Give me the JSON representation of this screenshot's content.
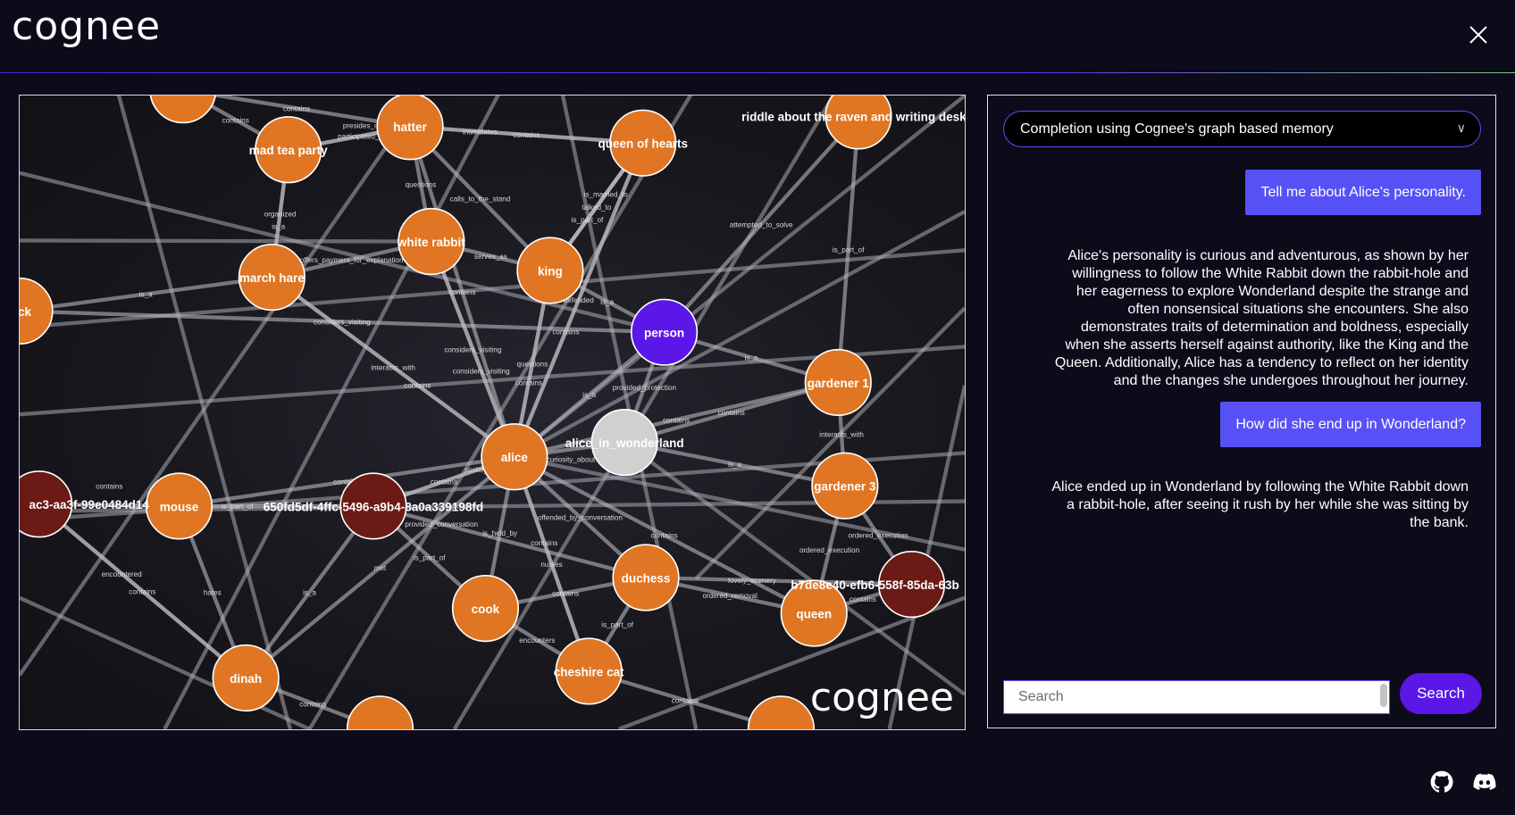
{
  "header": {
    "logo_text": "cognee",
    "close_icon": "close-icon"
  },
  "graph": {
    "watermark": "cognee",
    "colors": {
      "entity": "#e07623",
      "type": "#5b17e8",
      "document": "#d0d0d0",
      "chunk": "#6b1a16",
      "edge": "#b8b8be"
    },
    "nodes": [
      {
        "id": "top",
        "label": "",
        "kind": "entity"
      },
      {
        "id": "hatter",
        "label": "hatter",
        "kind": "entity"
      },
      {
        "id": "madtea",
        "label": "mad tea party",
        "kind": "entity"
      },
      {
        "id": "qoh",
        "label": "queen of hearts",
        "kind": "entity"
      },
      {
        "id": "riddle",
        "label": "riddle about the raven and writing desk",
        "kind": "entity"
      },
      {
        "id": "wrabbit",
        "label": "white rabbit",
        "kind": "entity"
      },
      {
        "id": "king",
        "label": "king",
        "kind": "entity"
      },
      {
        "id": "march",
        "label": "march hare",
        "kind": "entity"
      },
      {
        "id": "leftck",
        "label": "ck",
        "kind": "entity"
      },
      {
        "id": "person",
        "label": "person",
        "kind": "type"
      },
      {
        "id": "gard1",
        "label": "gardener 1",
        "kind": "entity"
      },
      {
        "id": "aiw",
        "label": "alice_in_wonderland",
        "kind": "document"
      },
      {
        "id": "alice",
        "label": "alice",
        "kind": "entity"
      },
      {
        "id": "gard3",
        "label": "gardener 3",
        "kind": "entity"
      },
      {
        "id": "chunk1",
        "label": "ac3-aa3f-99e0484d14",
        "kind": "chunk"
      },
      {
        "id": "mouse",
        "label": "mouse",
        "kind": "entity"
      },
      {
        "id": "chunk2",
        "label": "650fd5df-4ffc-5496-a9b4-8a0a339198fd",
        "kind": "chunk"
      },
      {
        "id": "duchess",
        "label": "duchess",
        "kind": "entity"
      },
      {
        "id": "cook",
        "label": "cook",
        "kind": "entity"
      },
      {
        "id": "queen",
        "label": "queen",
        "kind": "entity"
      },
      {
        "id": "chunk3",
        "label": "b7de8e40-efb6-558f-85da-63b",
        "kind": "chunk"
      },
      {
        "id": "dinah",
        "label": "dinah",
        "kind": "entity"
      },
      {
        "id": "cheshire",
        "label": "cheshire cat",
        "kind": "entity"
      },
      {
        "id": "bot1",
        "label": "",
        "kind": "entity"
      },
      {
        "id": "bot2",
        "label": "",
        "kind": "entity"
      }
    ],
    "edges": [
      [
        "madtea",
        "hatter",
        "participated_in"
      ],
      [
        "hatter",
        "qoh",
        "contains"
      ],
      [
        "hatter",
        "qoh",
        "intimidates"
      ],
      [
        "hatter",
        "madtea",
        "presides_over"
      ],
      [
        "hatter",
        "king",
        "calls_to_the_stand"
      ],
      [
        "qoh",
        "king",
        "talked_to"
      ],
      [
        "qoh",
        "king",
        "is_married_to"
      ],
      [
        "qoh",
        "alice",
        "defended"
      ],
      [
        "madtea",
        "march",
        "organized"
      ],
      [
        "wrabbit",
        "hatter",
        "questions"
      ],
      [
        "wrabbit",
        "alice",
        "considers_visiting"
      ],
      [
        "wrabbit",
        "king",
        "serves_as"
      ],
      [
        "march",
        "wrabbit",
        "offers_payment_for_explanation"
      ],
      [
        "march",
        "madtea",
        "is_a"
      ],
      [
        "king",
        "person",
        "is_a"
      ],
      [
        "king",
        "alice",
        "questions"
      ],
      [
        "king",
        "qoh",
        "is_part_of"
      ],
      [
        "riddle",
        "person",
        "attempted_to_solve"
      ],
      [
        "riddle",
        "gard1",
        "is_part_of"
      ],
      [
        "person",
        "gard1",
        "is_a"
      ],
      [
        "person",
        "alice",
        "is_a"
      ],
      [
        "person",
        "aiw",
        "provided_protection"
      ],
      [
        "march",
        "alice",
        "interacts_with"
      ],
      [
        "leftck",
        "person",
        "considers_visiting"
      ],
      [
        "leftck",
        "march",
        "is_a"
      ],
      [
        "alice",
        "aiw",
        "curiosity_about"
      ],
      [
        "aiw",
        "gard1",
        "contains"
      ],
      [
        "aiw",
        "gard3",
        "is_a"
      ],
      [
        "gard1",
        "gard3",
        "interacts_with"
      ],
      [
        "gard3",
        "chunk3",
        "ordered_execution"
      ],
      [
        "alice",
        "chunk2",
        "contains"
      ],
      [
        "chunk2",
        "mouse",
        "is_part_of"
      ],
      [
        "mouse",
        "chunk1",
        "contains"
      ],
      [
        "chunk1",
        "dinah",
        "contains"
      ],
      [
        "mouse",
        "dinah",
        "hates"
      ],
      [
        "chunk1",
        "dinah",
        "encountered"
      ],
      [
        "chunk2",
        "dinah",
        "is_a"
      ],
      [
        "chunk2",
        "cook",
        "is_part_of"
      ],
      [
        "alice",
        "duchess",
        "offended_by_conversation"
      ],
      [
        "alice",
        "cook",
        "is_held_by"
      ],
      [
        "duchess",
        "cook",
        "contains"
      ],
      [
        "duchess",
        "chunk3",
        "lovely_scenery"
      ],
      [
        "duchess",
        "queen",
        "ordered_removal"
      ],
      [
        "queen",
        "chunk3",
        "contains"
      ],
      [
        "queen",
        "gard3",
        "ordered_execution"
      ],
      [
        "cook",
        "cheshire",
        "encounters"
      ],
      [
        "cheshire",
        "alice",
        "nurses"
      ],
      [
        "cheshire",
        "duchess",
        "is_part_of"
      ],
      [
        "alice",
        "chunk2",
        "spoke_to"
      ],
      [
        "alice",
        "march",
        "contains"
      ],
      [
        "alice",
        "wrabbit",
        "considers_visiting"
      ],
      [
        "alice",
        "king",
        "contains"
      ],
      [
        "alice",
        "qoh",
        "contains"
      ],
      [
        "alice",
        "hatter",
        "contains"
      ],
      [
        "alice",
        "dinah",
        "met"
      ],
      [
        "alice",
        "gard1",
        "contains"
      ],
      [
        "alice",
        "queen",
        "contains"
      ],
      [
        "alice",
        "mouse",
        "contains"
      ],
      [
        "alice",
        "cheshire",
        "contains"
      ],
      [
        "chunk2",
        "duchess",
        "provided_conversation"
      ],
      [
        "dinah",
        "bot1",
        "contains"
      ],
      [
        "cheshire",
        "bot2",
        "contains"
      ],
      [
        "top",
        "madtea",
        "contains"
      ],
      [
        "top",
        "hatter",
        "contains"
      ]
    ]
  },
  "chat": {
    "mode_selector": "Completion using Cognee's graph based memory",
    "messages": [
      {
        "role": "user",
        "text": "Tell me about Alice's personality."
      },
      {
        "role": "assistant",
        "lines": [
          "Alice's personality is curious and adventurous, as shown by her",
          "willingness to follow the White Rabbit down the rabbit-hole and",
          "her eagerness to explore Wonderland despite the strange and",
          "often nonsensical situations she encounters. She also",
          "demonstrates traits of determination and boldness, especially",
          "when she asserts herself against authority, like the King and the",
          "Queen. Additionally, Alice has a tendency to reflect on her identity",
          "and the changes she undergoes throughout her journey."
        ]
      },
      {
        "role": "user",
        "text": "How did she end up in Wonderland?"
      },
      {
        "role": "assistant",
        "lines": [
          "Alice ended up in Wonderland by following the White Rabbit down",
          "a rabbit-hole, after seeing it rush by her while she was sitting by",
          "the bank."
        ]
      }
    ],
    "search": {
      "placeholder": "Search",
      "value": "",
      "button": "Search"
    }
  },
  "footer": {
    "icons": [
      "github-icon",
      "discord-icon"
    ]
  }
}
